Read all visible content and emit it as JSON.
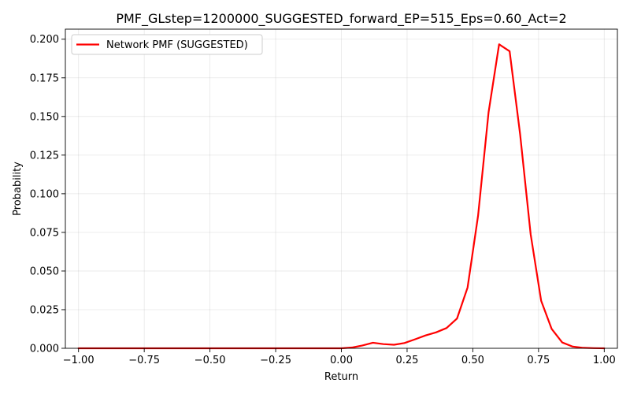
{
  "chart_data": {
    "type": "line",
    "title": "PMF_GLstep=1200000_SUGGESTED_forward_EP=515_Eps=0.60_Act=2",
    "xlabel": "Return",
    "ylabel": "Probability",
    "xlim": [
      -1.05,
      1.05
    ],
    "ylim": [
      0.0,
      0.2065
    ],
    "grid": true,
    "legend_position": "upper-left",
    "x_ticks": [
      -1.0,
      -0.75,
      -0.5,
      -0.25,
      0.0,
      0.25,
      0.5,
      0.75,
      1.0
    ],
    "x_tick_labels": [
      "−1.00",
      "−0.75",
      "−0.50",
      "−0.25",
      "0.00",
      "0.25",
      "0.50",
      "0.75",
      "1.00"
    ],
    "y_ticks": [
      0.0,
      0.025,
      0.05,
      0.075,
      0.1,
      0.125,
      0.15,
      0.175,
      0.2
    ],
    "y_tick_labels": [
      "0.000",
      "0.025",
      "0.050",
      "0.075",
      "0.100",
      "0.125",
      "0.150",
      "0.175",
      "0.200"
    ],
    "series": [
      {
        "name": "Network PMF (SUGGESTED)",
        "color": "#ff0000",
        "x": [
          -1.0,
          -0.96,
          -0.92,
          -0.88,
          -0.84,
          -0.8,
          -0.76,
          -0.72,
          -0.68,
          -0.64,
          -0.6,
          -0.56,
          -0.52,
          -0.48,
          -0.44,
          -0.4,
          -0.36,
          -0.32,
          -0.28,
          -0.24,
          -0.2,
          -0.16,
          -0.12,
          -0.08,
          -0.04,
          0.0,
          0.04,
          0.08,
          0.12,
          0.16,
          0.2,
          0.24,
          0.28,
          0.32,
          0.36,
          0.4,
          0.44,
          0.48,
          0.52,
          0.56,
          0.6,
          0.64,
          0.68,
          0.72,
          0.76,
          0.8,
          0.84,
          0.88,
          0.92,
          0.96,
          1.0
        ],
        "values": [
          0.0,
          0.0,
          0.0,
          0.0,
          0.0,
          0.0,
          0.0,
          0.0,
          0.0,
          0.0,
          0.0,
          0.0,
          0.0,
          0.0,
          0.0,
          0.0,
          0.0,
          0.0,
          0.0,
          0.0,
          0.0,
          0.0,
          0.0,
          0.0,
          0.0,
          0.0,
          0.0005,
          0.0018,
          0.0036,
          0.0027,
          0.0023,
          0.0034,
          0.0058,
          0.0083,
          0.0103,
          0.0131,
          0.0193,
          0.0393,
          0.0858,
          0.1528,
          0.1967,
          0.1922,
          0.1384,
          0.0738,
          0.0307,
          0.0125,
          0.0038,
          0.0011,
          0.0003,
          0.0001,
          0.0
        ]
      }
    ]
  }
}
